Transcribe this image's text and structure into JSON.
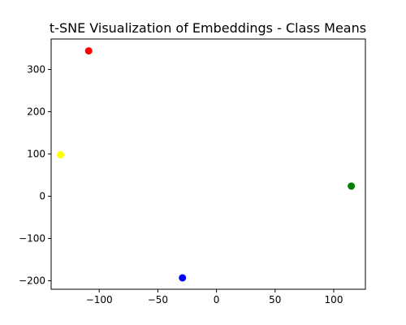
{
  "chart_data": {
    "type": "scatter",
    "title": "t-SNE Visualization of Embeddings - Class Means",
    "xlabel": "",
    "ylabel": "",
    "xlim": [
      -141,
      127
    ],
    "ylim": [
      -220,
      372
    ],
    "x_ticks": [
      -100,
      -50,
      0,
      50,
      100
    ],
    "y_ticks": [
      -200,
      -100,
      0,
      100,
      200,
      300
    ],
    "x_tick_labels": [
      "−100",
      "−50",
      "0",
      "50",
      "100"
    ],
    "y_tick_labels": [
      "−200",
      "−100",
      "0",
      "100",
      "200",
      "300"
    ],
    "grid": false,
    "legend": "none",
    "points": [
      {
        "x": -109,
        "y": 344,
        "color": "#ff0000"
      },
      {
        "x": -133,
        "y": 98,
        "color": "#ffff00"
      },
      {
        "x": -29,
        "y": -193,
        "color": "#0000ff"
      },
      {
        "x": 115,
        "y": 24,
        "color": "#008000"
      }
    ]
  }
}
